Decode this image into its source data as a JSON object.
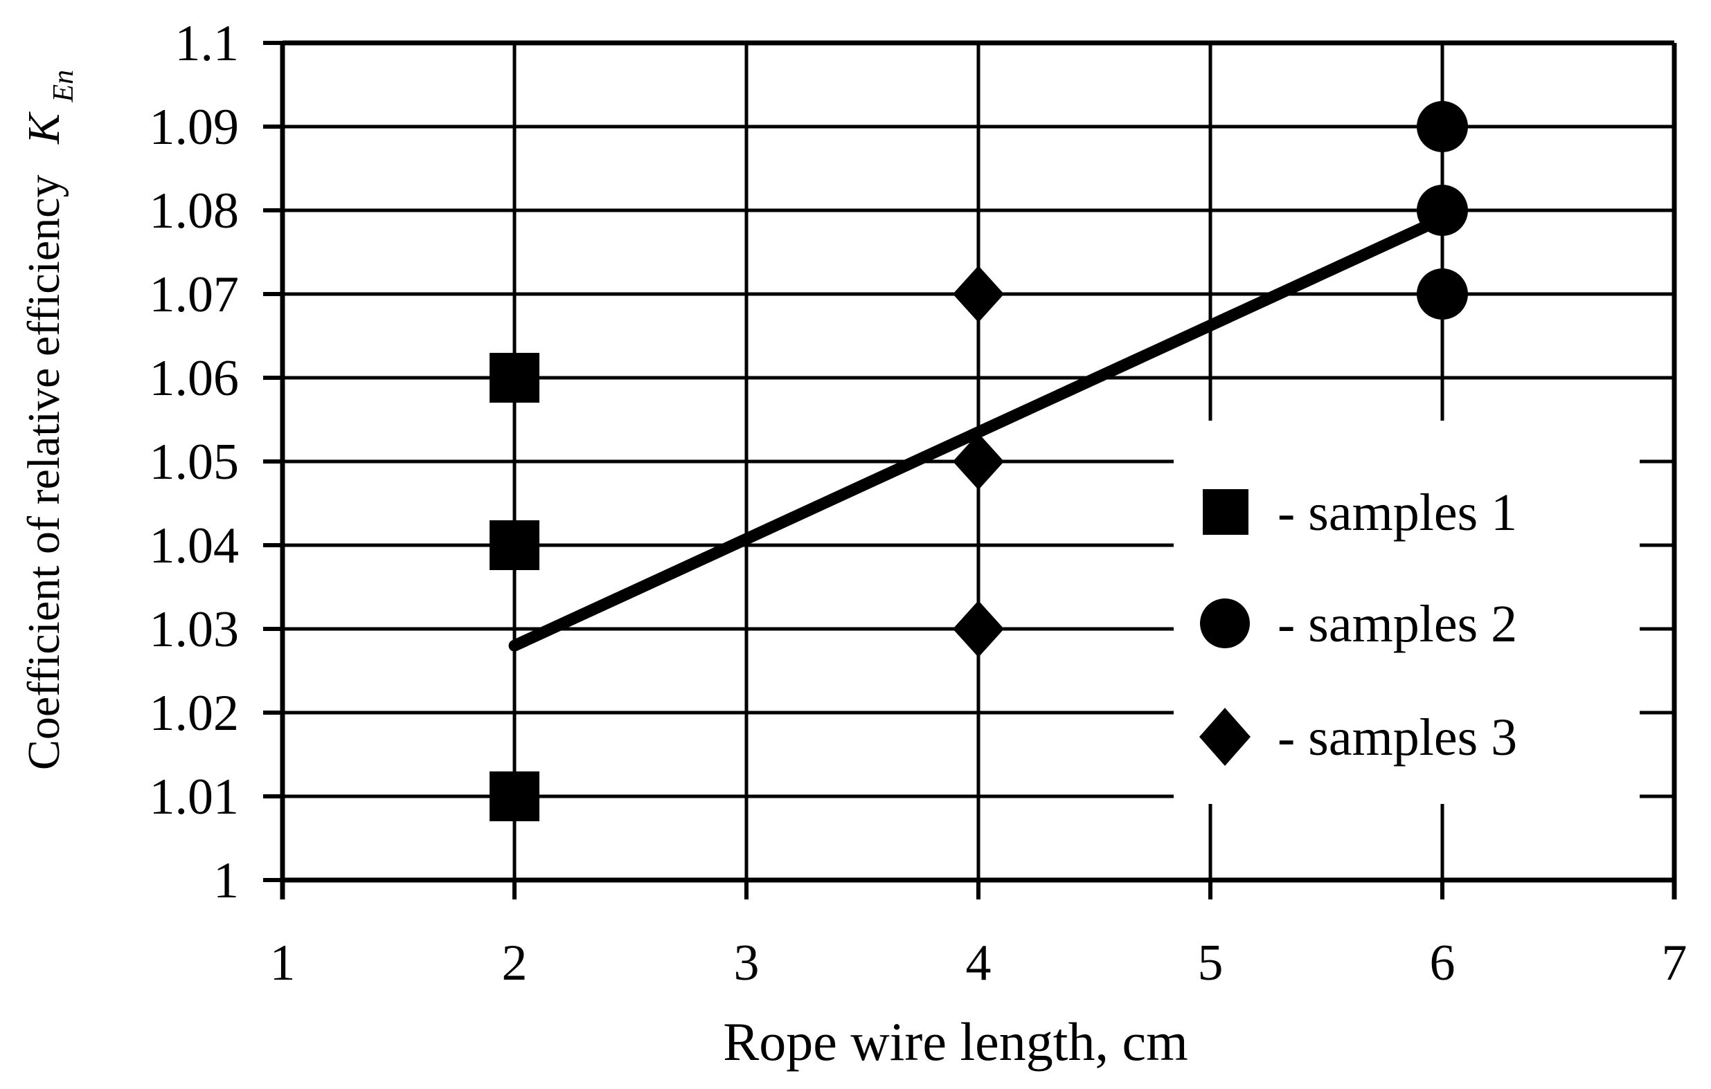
{
  "chart_data": {
    "type": "scatter",
    "title": "",
    "xlabel": "Rope wire length, cm",
    "ylabel": "Coefficient of relative efficiency",
    "ylabel_symbol": "K",
    "ylabel_symbol_subscript": "En",
    "xlim": [
      1,
      7
    ],
    "ylim": [
      1.0,
      1.1
    ],
    "grid": true,
    "xticks": [
      1,
      2,
      3,
      4,
      5,
      6,
      7
    ],
    "xtick_labels": [
      "1",
      "2",
      "3",
      "4",
      "5",
      "6",
      "7"
    ],
    "yticks": [
      1,
      1.01,
      1.02,
      1.03,
      1.04,
      1.05,
      1.06,
      1.07,
      1.08,
      1.09,
      1.1
    ],
    "ytick_labels": [
      "1",
      "1.01",
      "1.02",
      "1.03",
      "1.04",
      "1.05",
      "1.06",
      "1.07",
      "1.08",
      "1.09",
      "1.1"
    ],
    "series": [
      {
        "name": "samples 1",
        "marker": "square",
        "x": [
          2,
          2,
          2
        ],
        "y": [
          1.06,
          1.04,
          1.01
        ]
      },
      {
        "name": "samples 2",
        "marker": "circle",
        "x": [
          6,
          6,
          6
        ],
        "y": [
          1.09,
          1.08,
          1.07
        ]
      },
      {
        "name": "samples 3",
        "marker": "diamond",
        "x": [
          4,
          4,
          4
        ],
        "y": [
          1.07,
          1.05,
          1.03
        ]
      }
    ],
    "trendline": {
      "x1": 2,
      "y1": 1.028,
      "x2": 6,
      "y2": 1.079
    },
    "legend": {
      "position": "middle-right",
      "items": [
        {
          "marker": "square",
          "label": "- samples 1"
        },
        {
          "marker": "circle",
          "label": "- samples 2"
        },
        {
          "marker": "diamond",
          "label": "- samples 3"
        }
      ]
    },
    "colors": {
      "foreground": "#000000",
      "background": "#ffffff"
    }
  }
}
